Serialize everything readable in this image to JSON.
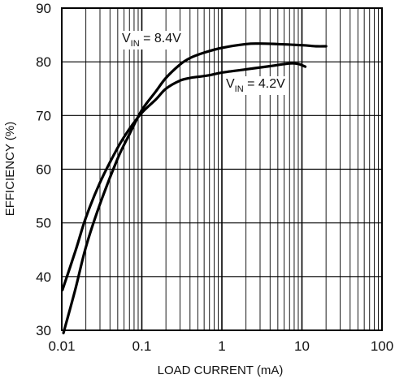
{
  "chart_data": {
    "type": "line",
    "xlabel": "LOAD CURRENT (mA)",
    "ylabel": "EFFICIENCY (%)",
    "x_scale": "log",
    "xlim": [
      0.01,
      100
    ],
    "ylim": [
      30,
      90
    ],
    "x_ticks": [
      {
        "value": 0.01,
        "label": "0.01"
      },
      {
        "value": 0.1,
        "label": "0.1"
      },
      {
        "value": 1,
        "label": "1"
      },
      {
        "value": 10,
        "label": "10"
      },
      {
        "value": 100,
        "label": "100"
      }
    ],
    "y_ticks": [
      {
        "value": 30,
        "label": "30"
      },
      {
        "value": 40,
        "label": "40"
      },
      {
        "value": 50,
        "label": "50"
      },
      {
        "value": 60,
        "label": "60"
      },
      {
        "value": 70,
        "label": "70"
      },
      {
        "value": 80,
        "label": "80"
      },
      {
        "value": 90,
        "label": "90"
      }
    ],
    "grid": true,
    "series": [
      {
        "name": "VIN = 8.4V",
        "label_main": "V",
        "label_sub": "IN",
        "label_rest": " = 8.4V",
        "color": "#000000",
        "points": [
          [
            0.0105,
            29.5
          ],
          [
            0.015,
            38
          ],
          [
            0.02,
            45.5
          ],
          [
            0.03,
            53.5
          ],
          [
            0.05,
            62
          ],
          [
            0.07,
            66.5
          ],
          [
            0.1,
            71
          ],
          [
            0.15,
            74.5
          ],
          [
            0.2,
            77
          ],
          [
            0.3,
            79.5
          ],
          [
            0.4,
            80.7
          ],
          [
            0.6,
            81.7
          ],
          [
            1,
            82.6
          ],
          [
            2,
            83.3
          ],
          [
            3,
            83.4
          ],
          [
            5,
            83.3
          ],
          [
            10,
            83.1
          ],
          [
            15,
            82.9
          ],
          [
            20,
            82.9
          ]
        ]
      },
      {
        "name": "VIN = 4.2V",
        "label_main": "V",
        "label_sub": "IN",
        "label_rest": " = 4.2V",
        "color": "#000000",
        "points": [
          [
            0.0102,
            37.5
          ],
          [
            0.015,
            45
          ],
          [
            0.02,
            51
          ],
          [
            0.03,
            57.5
          ],
          [
            0.05,
            64
          ],
          [
            0.07,
            67.5
          ],
          [
            0.1,
            70.5
          ],
          [
            0.15,
            73
          ],
          [
            0.2,
            75
          ],
          [
            0.3,
            76.5
          ],
          [
            0.4,
            77
          ],
          [
            0.5,
            77.2
          ],
          [
            0.7,
            77.5
          ],
          [
            1,
            78
          ],
          [
            2,
            78.6
          ],
          [
            4,
            79.2
          ],
          [
            7,
            79.7
          ],
          [
            9,
            79.6
          ],
          [
            11,
            79.1
          ]
        ]
      }
    ]
  }
}
